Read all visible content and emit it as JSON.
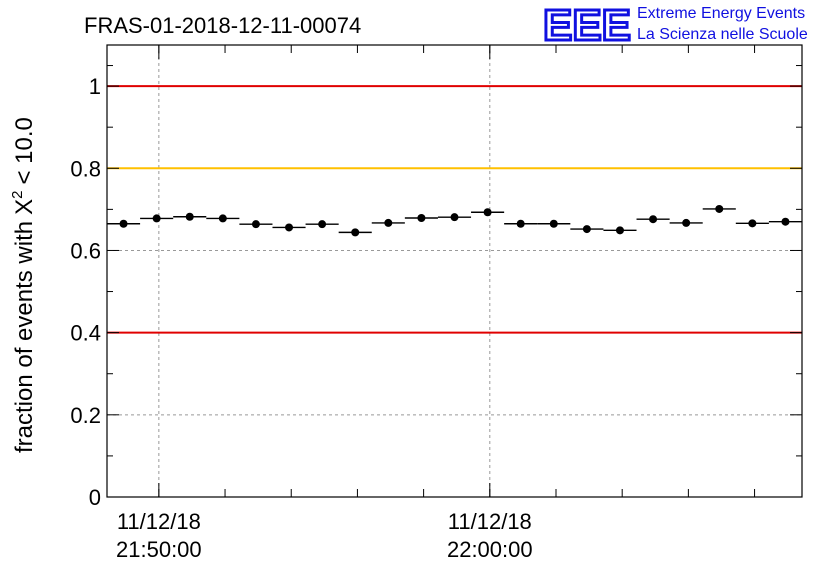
{
  "logo": {
    "mark": "EEE",
    "line1": "Extreme Energy Events",
    "line2": "La Scienza nelle Scuole",
    "color": "#1010e0"
  },
  "chart_data": {
    "type": "scatter",
    "title": "FRAS-01-2018-12-11-00074",
    "ylabel": "fraction of events with",
    "ylabel_symbol": "X",
    "ylabel_sup": "2",
    "ylabel_threshold": "< 10.0",
    "ylim": [
      0,
      1.1
    ],
    "yticks": [
      {
        "value": 0,
        "label": "0"
      },
      {
        "value": 0.2,
        "label": "0.2"
      },
      {
        "value": 0.4,
        "label": "0.4"
      },
      {
        "value": 0.6,
        "label": "0.6"
      },
      {
        "value": 0.8,
        "label": "0.8"
      },
      {
        "value": 1,
        "label": "1"
      }
    ],
    "xlim": [
      "21:48:26",
      "22:09:26"
    ],
    "xticks": [
      {
        "time": "21:50:00",
        "date": "11/12/18",
        "label": "21:50:00"
      },
      {
        "time": "22:00:00",
        "date": "11/12/18",
        "label": "22:00:00"
      }
    ],
    "minor_xtick_interval_min": 2,
    "grid": true,
    "reference_lines": [
      {
        "value": 1.0,
        "color": "#e00000"
      },
      {
        "value": 0.8,
        "color": "#ffc000"
      },
      {
        "value": 0.4,
        "color": "#e00000"
      }
    ],
    "bin_width_min": 1,
    "marker_color": "#000000",
    "points": [
      {
        "x": "21:48:56",
        "y": 0.665
      },
      {
        "x": "21:49:56",
        "y": 0.678
      },
      {
        "x": "21:50:56",
        "y": 0.682
      },
      {
        "x": "21:51:56",
        "y": 0.678
      },
      {
        "x": "21:52:56",
        "y": 0.664
      },
      {
        "x": "21:53:56",
        "y": 0.656
      },
      {
        "x": "21:54:56",
        "y": 0.664
      },
      {
        "x": "21:55:56",
        "y": 0.644
      },
      {
        "x": "21:56:56",
        "y": 0.667
      },
      {
        "x": "21:57:56",
        "y": 0.679
      },
      {
        "x": "21:58:56",
        "y": 0.681
      },
      {
        "x": "21:59:56",
        "y": 0.693
      },
      {
        "x": "22:00:56",
        "y": 0.665
      },
      {
        "x": "22:01:56",
        "y": 0.665
      },
      {
        "x": "22:02:56",
        "y": 0.652
      },
      {
        "x": "22:03:56",
        "y": 0.649
      },
      {
        "x": "22:04:56",
        "y": 0.676
      },
      {
        "x": "22:05:56",
        "y": 0.667
      },
      {
        "x": "22:06:56",
        "y": 0.701
      },
      {
        "x": "22:07:56",
        "y": 0.666
      },
      {
        "x": "22:08:56",
        "y": 0.67
      }
    ]
  }
}
